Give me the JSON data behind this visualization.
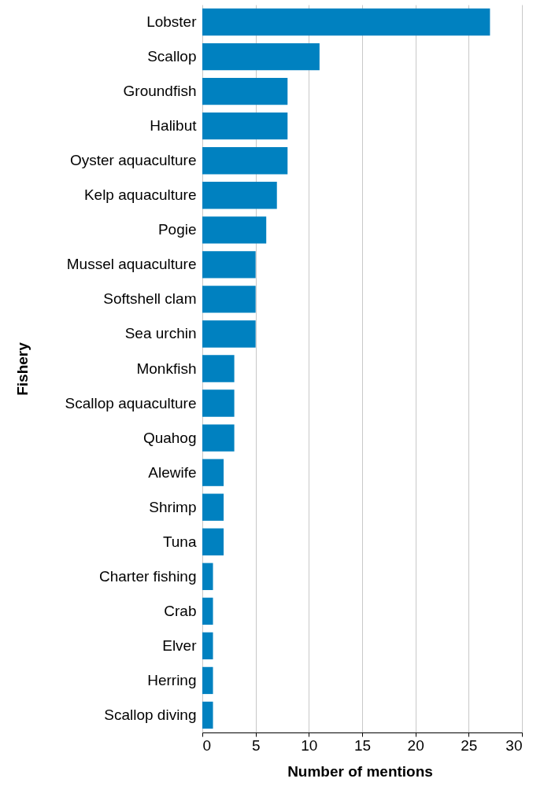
{
  "chart_data": {
    "type": "bar",
    "orientation": "horizontal",
    "xlabel": "Number of mentions",
    "ylabel": "Fishery",
    "categories": [
      "Lobster",
      "Scallop",
      "Groundfish",
      "Halibut",
      "Oyster aquaculture",
      "Kelp aquaculture",
      "Pogie",
      "Mussel aquaculture",
      "Softshell clam",
      "Sea urchin",
      "Monkfish",
      "Scallop aquaculture",
      "Quahog",
      "Alewife",
      "Shrimp",
      "Tuna",
      "Charter fishing",
      "Crab",
      "Elver",
      "Herring",
      "Scallop diving"
    ],
    "values": [
      27,
      11,
      8,
      8,
      8,
      7,
      6,
      5,
      5,
      5,
      3,
      3,
      3,
      2,
      2,
      2,
      1,
      1,
      1,
      1,
      1
    ],
    "color": "#0081c0",
    "xlim": [
      0,
      30
    ],
    "xticks": [
      0,
      5,
      10,
      15,
      20,
      25,
      30
    ],
    "grid": "x"
  }
}
